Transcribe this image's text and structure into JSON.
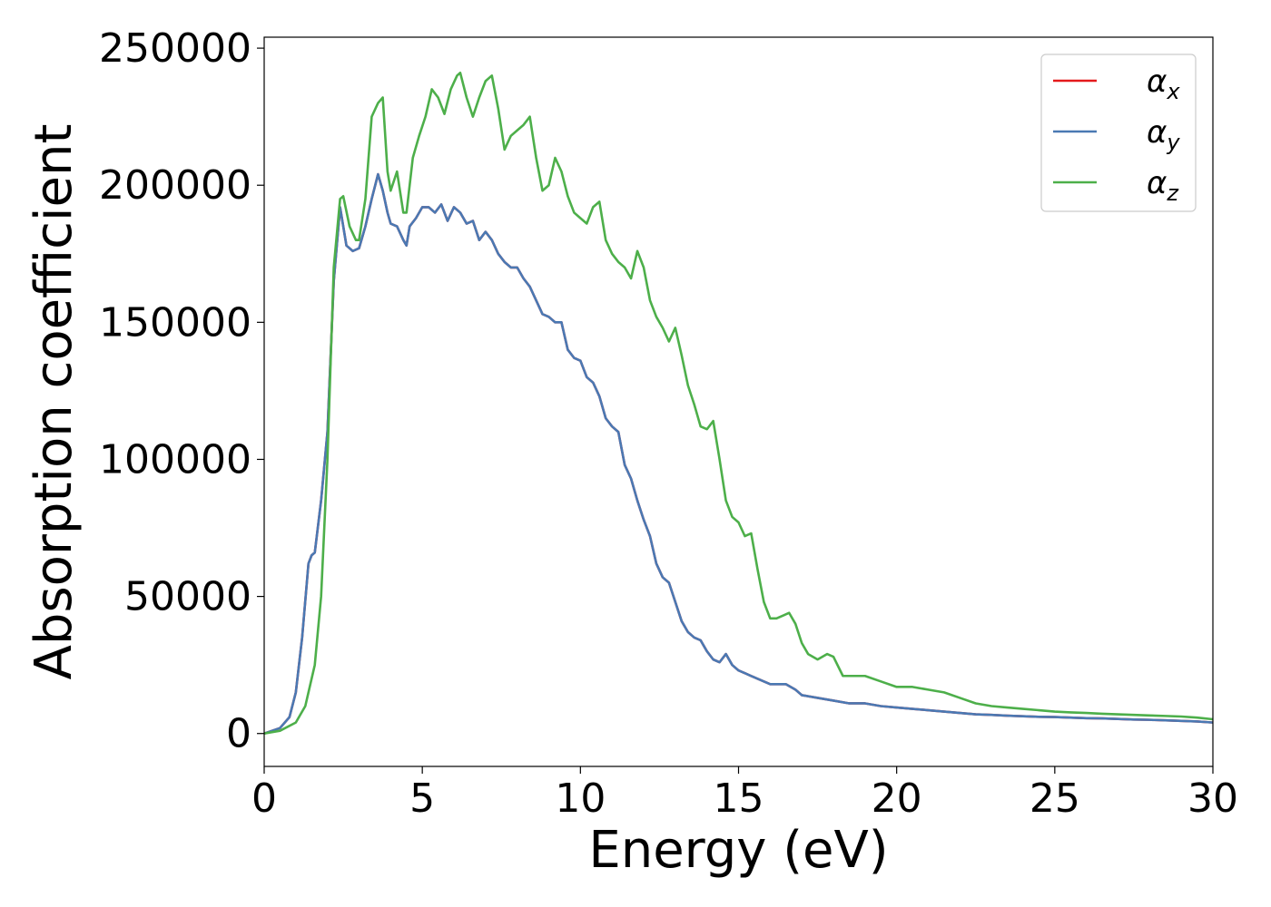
{
  "chart_data": {
    "type": "line",
    "title": "",
    "xlabel": "Energy (eV)",
    "ylabel": "Absorption coefficient",
    "xlim": [
      0,
      30
    ],
    "ylim": [
      -12000,
      254000
    ],
    "xticks": [
      0,
      5,
      10,
      15,
      20,
      25,
      30
    ],
    "xtick_labels": [
      "0",
      "5",
      "10",
      "15",
      "20",
      "25",
      "30"
    ],
    "yticks": [
      0,
      50000,
      100000,
      150000,
      200000,
      250000
    ],
    "ytick_labels": [
      "0",
      "50000",
      "100000",
      "150000",
      "200000",
      "250000"
    ],
    "grid": false,
    "legend_position": "top-right",
    "series": [
      {
        "name": "α_x",
        "legend_symbol": "α",
        "legend_sub": "x",
        "color": "#e41a1c",
        "x": [
          0,
          0.5,
          0.8,
          1.0,
          1.2,
          1.4,
          1.5,
          1.6,
          1.8,
          2.0,
          2.2,
          2.4,
          2.6,
          2.8,
          3.0,
          3.2,
          3.4,
          3.6,
          3.75,
          3.9,
          4.0,
          4.2,
          4.4,
          4.5,
          4.6,
          4.8,
          5.0,
          5.2,
          5.4,
          5.6,
          5.8,
          6.0,
          6.2,
          6.4,
          6.6,
          6.8,
          7.0,
          7.2,
          7.4,
          7.6,
          7.8,
          8.0,
          8.2,
          8.4,
          8.6,
          8.8,
          9.0,
          9.2,
          9.4,
          9.6,
          9.8,
          10.0,
          10.2,
          10.4,
          10.6,
          10.8,
          11.0,
          11.2,
          11.4,
          11.6,
          11.8,
          12.0,
          12.2,
          12.4,
          12.6,
          12.8,
          13.0,
          13.2,
          13.4,
          13.6,
          13.8,
          14.0,
          14.2,
          14.4,
          14.6,
          14.8,
          15.0,
          15.2,
          15.4,
          15.6,
          15.8,
          16.0,
          16.5,
          16.8,
          17.0,
          17.5,
          18.0,
          18.5,
          19.0,
          19.5,
          20.0,
          20.5,
          21.0,
          21.5,
          22.0,
          22.5,
          23.0,
          23.5,
          24.0,
          24.5,
          25.0,
          25.5,
          26.0,
          26.5,
          27.0,
          27.5,
          28.0,
          28.5,
          29.0,
          29.5,
          30.0
        ],
        "y": [
          0,
          2000,
          6000,
          15000,
          35000,
          62000,
          65000,
          66000,
          85000,
          110000,
          165000,
          192000,
          178000,
          176000,
          177000,
          185000,
          195000,
          204000,
          198000,
          190000,
          186000,
          185000,
          180000,
          178000,
          185000,
          188000,
          192000,
          192000,
          190000,
          193000,
          187000,
          192000,
          190000,
          186000,
          187000,
          180000,
          183000,
          180000,
          175000,
          172000,
          170000,
          170000,
          166000,
          163000,
          158000,
          153000,
          152000,
          150000,
          150000,
          140000,
          137000,
          136000,
          130000,
          128000,
          123000,
          115000,
          112000,
          110000,
          98000,
          93000,
          85000,
          78000,
          72000,
          62000,
          57000,
          55000,
          48000,
          41000,
          37000,
          35000,
          34000,
          30000,
          27000,
          26000,
          29000,
          25000,
          23000,
          22000,
          21000,
          20000,
          19000,
          18000,
          18000,
          16000,
          14000,
          13000,
          12000,
          11000,
          11000,
          10000,
          9500,
          9000,
          8500,
          8000,
          7500,
          7000,
          6800,
          6500,
          6300,
          6100,
          6000,
          5800,
          5600,
          5500,
          5300,
          5100,
          5000,
          4800,
          4600,
          4400,
          4000
        ]
      },
      {
        "name": "α_y",
        "legend_symbol": "α",
        "legend_sub": "y",
        "color": "#4a79b3",
        "x": [
          0,
          0.5,
          0.8,
          1.0,
          1.2,
          1.4,
          1.5,
          1.6,
          1.8,
          2.0,
          2.2,
          2.4,
          2.6,
          2.8,
          3.0,
          3.2,
          3.4,
          3.6,
          3.75,
          3.9,
          4.0,
          4.2,
          4.4,
          4.5,
          4.6,
          4.8,
          5.0,
          5.2,
          5.4,
          5.6,
          5.8,
          6.0,
          6.2,
          6.4,
          6.6,
          6.8,
          7.0,
          7.2,
          7.4,
          7.6,
          7.8,
          8.0,
          8.2,
          8.4,
          8.6,
          8.8,
          9.0,
          9.2,
          9.4,
          9.6,
          9.8,
          10.0,
          10.2,
          10.4,
          10.6,
          10.8,
          11.0,
          11.2,
          11.4,
          11.6,
          11.8,
          12.0,
          12.2,
          12.4,
          12.6,
          12.8,
          13.0,
          13.2,
          13.4,
          13.6,
          13.8,
          14.0,
          14.2,
          14.4,
          14.6,
          14.8,
          15.0,
          15.2,
          15.4,
          15.6,
          15.8,
          16.0,
          16.5,
          16.8,
          17.0,
          17.5,
          18.0,
          18.5,
          19.0,
          19.5,
          20.0,
          20.5,
          21.0,
          21.5,
          22.0,
          22.5,
          23.0,
          23.5,
          24.0,
          24.5,
          25.0,
          25.5,
          26.0,
          26.5,
          27.0,
          27.5,
          28.0,
          28.5,
          29.0,
          29.5,
          30.0
        ],
        "y": [
          0,
          2000,
          6000,
          15000,
          35000,
          62000,
          65000,
          66000,
          85000,
          110000,
          165000,
          192000,
          178000,
          176000,
          177000,
          185000,
          195000,
          204000,
          198000,
          190000,
          186000,
          185000,
          180000,
          178000,
          185000,
          188000,
          192000,
          192000,
          190000,
          193000,
          187000,
          192000,
          190000,
          186000,
          187000,
          180000,
          183000,
          180000,
          175000,
          172000,
          170000,
          170000,
          166000,
          163000,
          158000,
          153000,
          152000,
          150000,
          150000,
          140000,
          137000,
          136000,
          130000,
          128000,
          123000,
          115000,
          112000,
          110000,
          98000,
          93000,
          85000,
          78000,
          72000,
          62000,
          57000,
          55000,
          48000,
          41000,
          37000,
          35000,
          34000,
          30000,
          27000,
          26000,
          29000,
          25000,
          23000,
          22000,
          21000,
          20000,
          19000,
          18000,
          18000,
          16000,
          14000,
          13000,
          12000,
          11000,
          11000,
          10000,
          9500,
          9000,
          8500,
          8000,
          7500,
          7000,
          6800,
          6500,
          6300,
          6100,
          6000,
          5800,
          5600,
          5500,
          5300,
          5100,
          5000,
          4800,
          4600,
          4400,
          4000
        ]
      },
      {
        "name": "α_z",
        "legend_symbol": "α",
        "legend_sub": "z",
        "color": "#4daf4a",
        "x": [
          0,
          0.5,
          1.0,
          1.3,
          1.6,
          1.8,
          2.0,
          2.2,
          2.4,
          2.5,
          2.7,
          2.9,
          3.0,
          3.2,
          3.4,
          3.6,
          3.75,
          3.9,
          4.0,
          4.2,
          4.4,
          4.5,
          4.7,
          4.9,
          5.1,
          5.3,
          5.5,
          5.7,
          5.9,
          6.1,
          6.2,
          6.4,
          6.6,
          6.8,
          7.0,
          7.2,
          7.4,
          7.6,
          7.8,
          8.0,
          8.2,
          8.4,
          8.6,
          8.8,
          9.0,
          9.2,
          9.4,
          9.6,
          9.8,
          10.0,
          10.2,
          10.4,
          10.6,
          10.8,
          11.0,
          11.2,
          11.4,
          11.6,
          11.8,
          12.0,
          12.2,
          12.4,
          12.6,
          12.8,
          13.0,
          13.2,
          13.4,
          13.6,
          13.8,
          14.0,
          14.2,
          14.4,
          14.6,
          14.8,
          15.0,
          15.2,
          15.4,
          15.6,
          15.8,
          16.0,
          16.2,
          16.4,
          16.6,
          16.8,
          17.0,
          17.2,
          17.5,
          17.8,
          18.0,
          18.3,
          18.6,
          19.0,
          19.5,
          20.0,
          20.5,
          21.0,
          21.5,
          22.0,
          22.5,
          23.0,
          23.5,
          24.0,
          24.5,
          25.0,
          25.5,
          26.0,
          26.5,
          27.0,
          27.5,
          28.0,
          28.5,
          29.0,
          29.5,
          30.0
        ],
        "y": [
          0,
          1000,
          4000,
          10000,
          25000,
          50000,
          100000,
          170000,
          195000,
          196000,
          185000,
          180000,
          180000,
          195000,
          225000,
          230000,
          232000,
          205000,
          198000,
          205000,
          190000,
          190000,
          210000,
          218000,
          225000,
          235000,
          232000,
          226000,
          235000,
          240000,
          241000,
          232000,
          225000,
          232000,
          238000,
          240000,
          228000,
          213000,
          218000,
          220000,
          222000,
          225000,
          210000,
          198000,
          200000,
          210000,
          205000,
          196000,
          190000,
          188000,
          186000,
          192000,
          194000,
          180000,
          175000,
          172000,
          170000,
          166000,
          176000,
          170000,
          158000,
          152000,
          148000,
          143000,
          148000,
          138000,
          127000,
          120000,
          112000,
          111000,
          114000,
          100000,
          85000,
          79000,
          77000,
          72000,
          73000,
          60000,
          48000,
          42000,
          42000,
          43000,
          44000,
          40000,
          33000,
          29000,
          27000,
          29000,
          28000,
          21000,
          21000,
          21000,
          19000,
          17000,
          17000,
          16000,
          15000,
          13000,
          11000,
          10000,
          9500,
          9000,
          8500,
          8000,
          7700,
          7500,
          7200,
          7000,
          6800,
          6600,
          6400,
          6200,
          5800,
          5200
        ]
      }
    ]
  }
}
